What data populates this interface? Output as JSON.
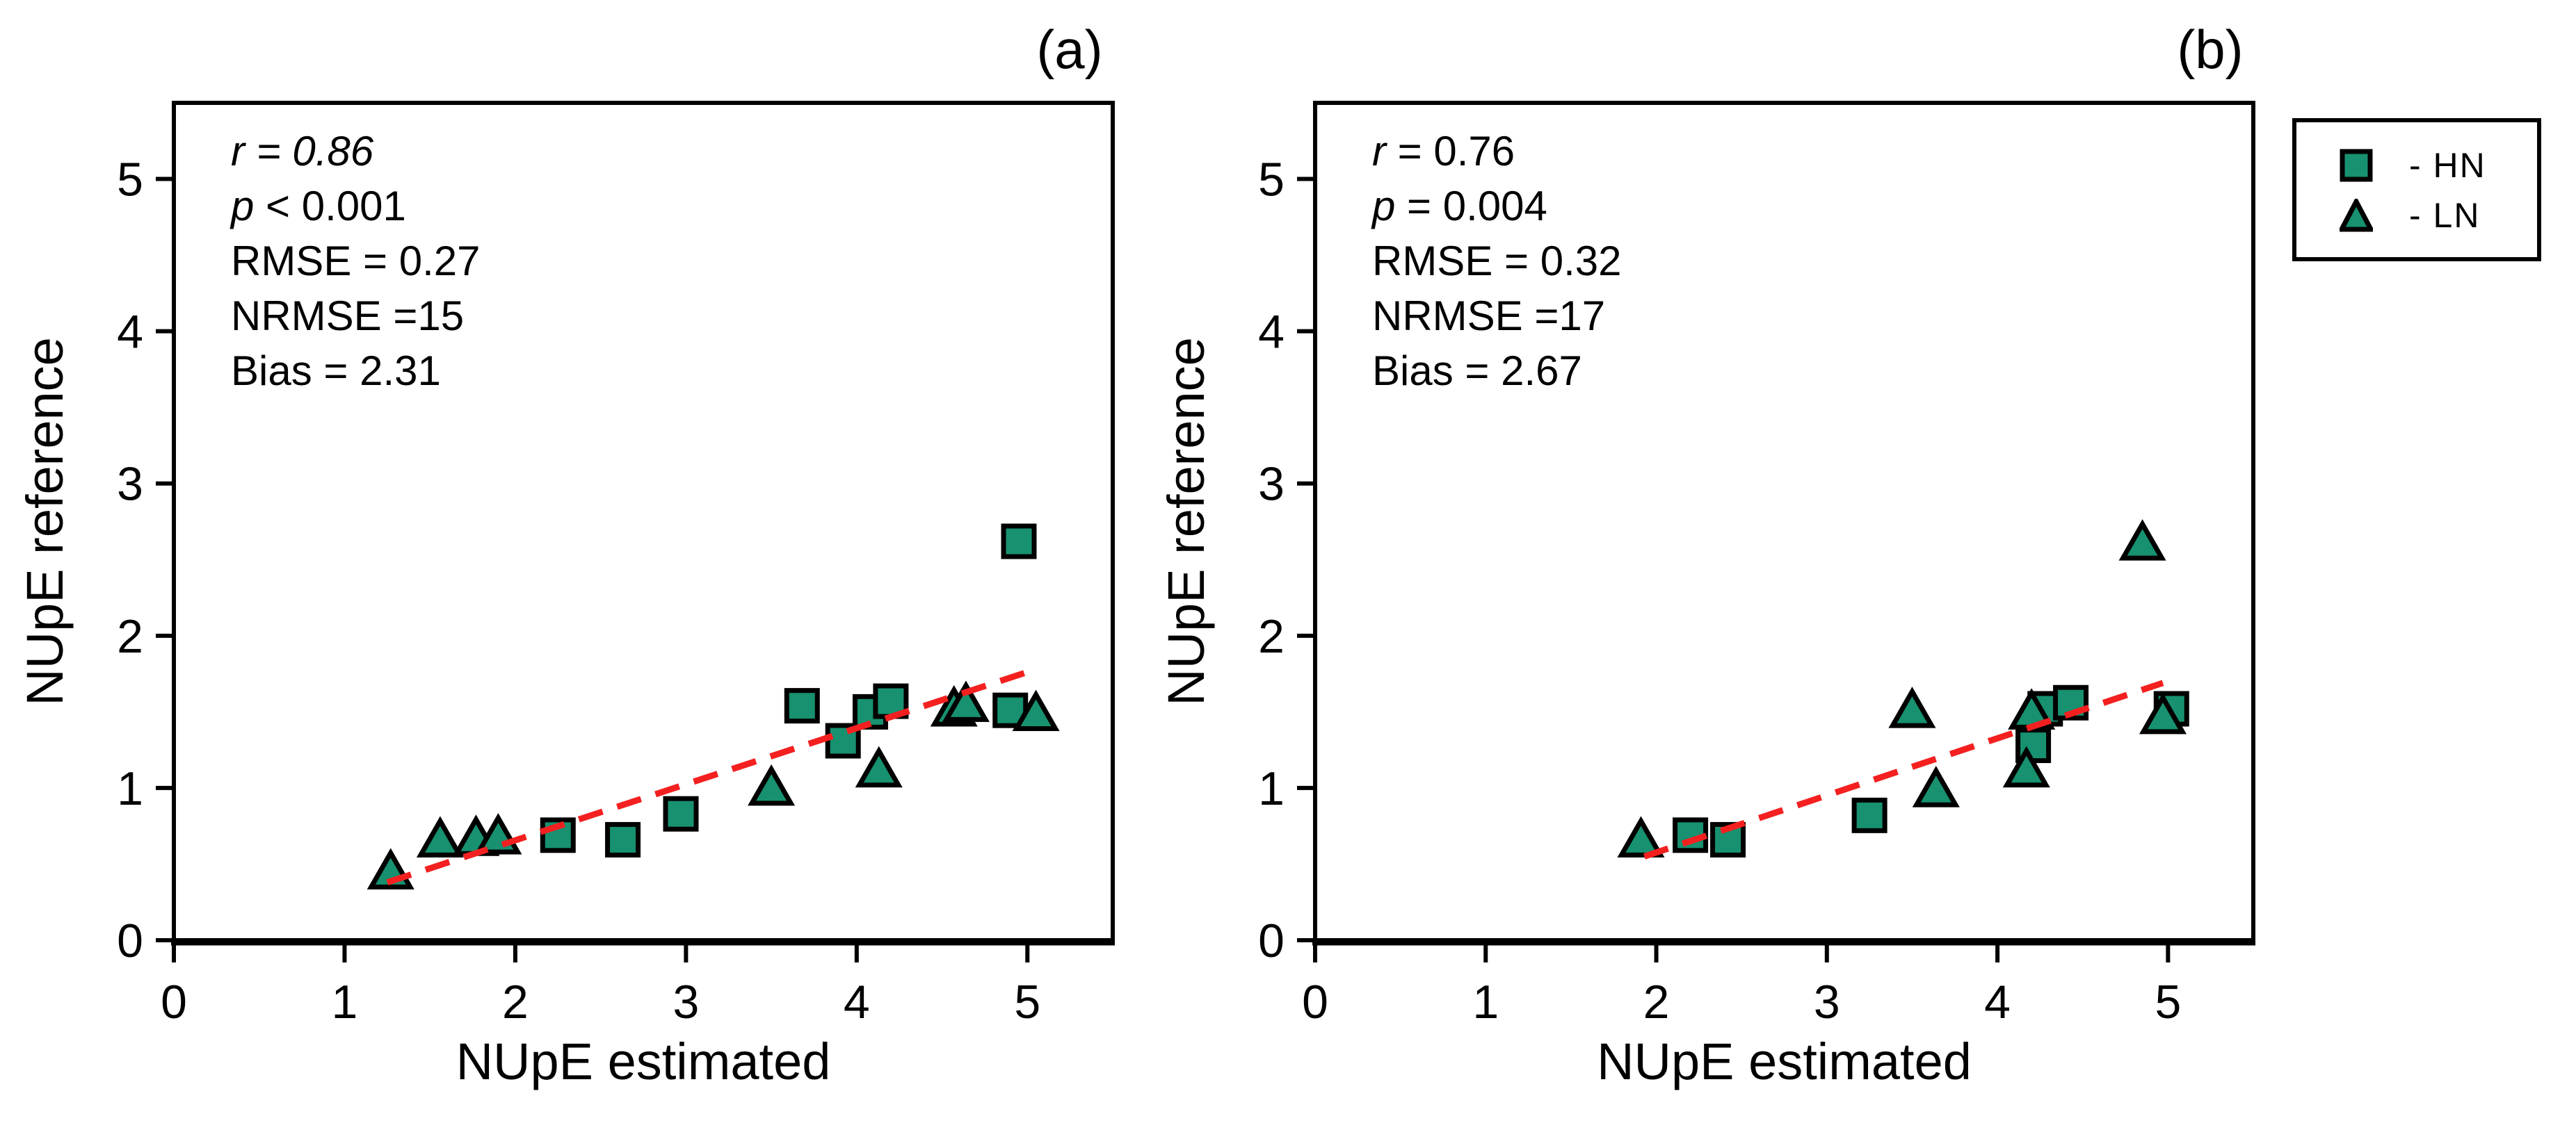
{
  "figure": {
    "background": "#ffffff",
    "text_color": "#000000",
    "axis_color": "#000000",
    "marker_fill": "#179170",
    "marker_stroke": "#000000",
    "trend_color": "#f42020"
  },
  "legend": {
    "items": [
      {
        "marker": "square",
        "series": "HN",
        "label": "- HN"
      },
      {
        "marker": "triangle",
        "series": "LN",
        "label": "- LN"
      }
    ]
  },
  "chart_data": [
    {
      "type": "scatter",
      "panel_label": "(a)",
      "xlabel": "NUpE estimated",
      "ylabel": "NUpE reference",
      "xlim": [
        0,
        5.5
      ],
      "ylim": [
        0,
        5.5
      ],
      "xticks": [
        "0",
        "1",
        "2",
        "3",
        "4",
        "5"
      ],
      "yticks": [
        "0",
        "1",
        "2",
        "3",
        "4",
        "5"
      ],
      "grid": false,
      "stats": [
        {
          "lead": "r",
          "rest": " = 0.86",
          "italic_lead": true,
          "italic_rest": true
        },
        {
          "lead": "p",
          "rest": " < 0.001",
          "italic_lead": true,
          "italic_rest": false
        },
        {
          "lead": "RMSE",
          "rest": " = 0.27",
          "italic_lead": false,
          "italic_rest": false
        },
        {
          "lead": "NRMSE",
          "rest": " =15",
          "italic_lead": false,
          "italic_rest": false
        },
        {
          "lead": "Bias",
          "rest": " = 2.31",
          "italic_lead": false,
          "italic_rest": false
        }
      ],
      "series": [
        {
          "name": "HN",
          "marker": "square",
          "points": [
            [
              2.25,
              0.69
            ],
            [
              2.63,
              0.66
            ],
            [
              2.97,
              0.83
            ],
            [
              3.68,
              1.54
            ],
            [
              3.92,
              1.31
            ],
            [
              4.08,
              1.5
            ],
            [
              4.2,
              1.57
            ],
            [
              4.9,
              1.51
            ],
            [
              4.95,
              2.62
            ]
          ]
        },
        {
          "name": "LN",
          "marker": "triangle",
          "points": [
            [
              1.27,
              0.45
            ],
            [
              1.56,
              0.66
            ],
            [
              1.77,
              0.67
            ],
            [
              1.9,
              0.68
            ],
            [
              3.5,
              1.0
            ],
            [
              4.13,
              1.12
            ],
            [
              4.57,
              1.52
            ],
            [
              4.64,
              1.55
            ],
            [
              5.05,
              1.49
            ]
          ]
        }
      ],
      "trendline": {
        "x1": 1.25,
        "y1": 0.38,
        "x2": 5.05,
        "y2": 1.78,
        "style": "dashed"
      }
    },
    {
      "type": "scatter",
      "panel_label": "(b)",
      "xlabel": "NUpE estimated",
      "ylabel": "NUpE reference",
      "xlim": [
        0,
        5.5
      ],
      "ylim": [
        0,
        5.5
      ],
      "xticks": [
        "0",
        "1",
        "2",
        "3",
        "4",
        "5"
      ],
      "yticks": [
        "0",
        "1",
        "2",
        "3",
        "4",
        "5"
      ],
      "grid": false,
      "stats": [
        {
          "lead": "r",
          "rest": " = 0.76",
          "italic_lead": true,
          "italic_rest": false
        },
        {
          "lead": "p",
          "rest": " = 0.004",
          "italic_lead": true,
          "italic_rest": false
        },
        {
          "lead": "RMSE",
          "rest": " = 0.32",
          "italic_lead": false,
          "italic_rest": false
        },
        {
          "lead": "NRMSE",
          "rest": " =17",
          "italic_lead": false,
          "italic_rest": false
        },
        {
          "lead": "Bias",
          "rest": " = 2.67",
          "italic_lead": false,
          "italic_rest": false
        }
      ],
      "series": [
        {
          "name": "HN",
          "marker": "square",
          "points": [
            [
              2.2,
              0.69
            ],
            [
              2.42,
              0.66
            ],
            [
              3.25,
              0.82
            ],
            [
              4.21,
              1.28
            ],
            [
              4.28,
              1.52
            ],
            [
              4.43,
              1.56
            ],
            [
              5.02,
              1.52
            ]
          ]
        },
        {
          "name": "LN",
          "marker": "triangle",
          "points": [
            [
              1.91,
              0.66
            ],
            [
              3.5,
              1.51
            ],
            [
              3.64,
              0.99
            ],
            [
              4.17,
              1.12
            ],
            [
              4.2,
              1.5
            ],
            [
              4.85,
              2.61
            ],
            [
              4.97,
              1.47
            ]
          ]
        }
      ],
      "trendline": {
        "x1": 1.93,
        "y1": 0.55,
        "x2": 4.97,
        "y2": 1.69,
        "style": "dashed"
      }
    }
  ]
}
